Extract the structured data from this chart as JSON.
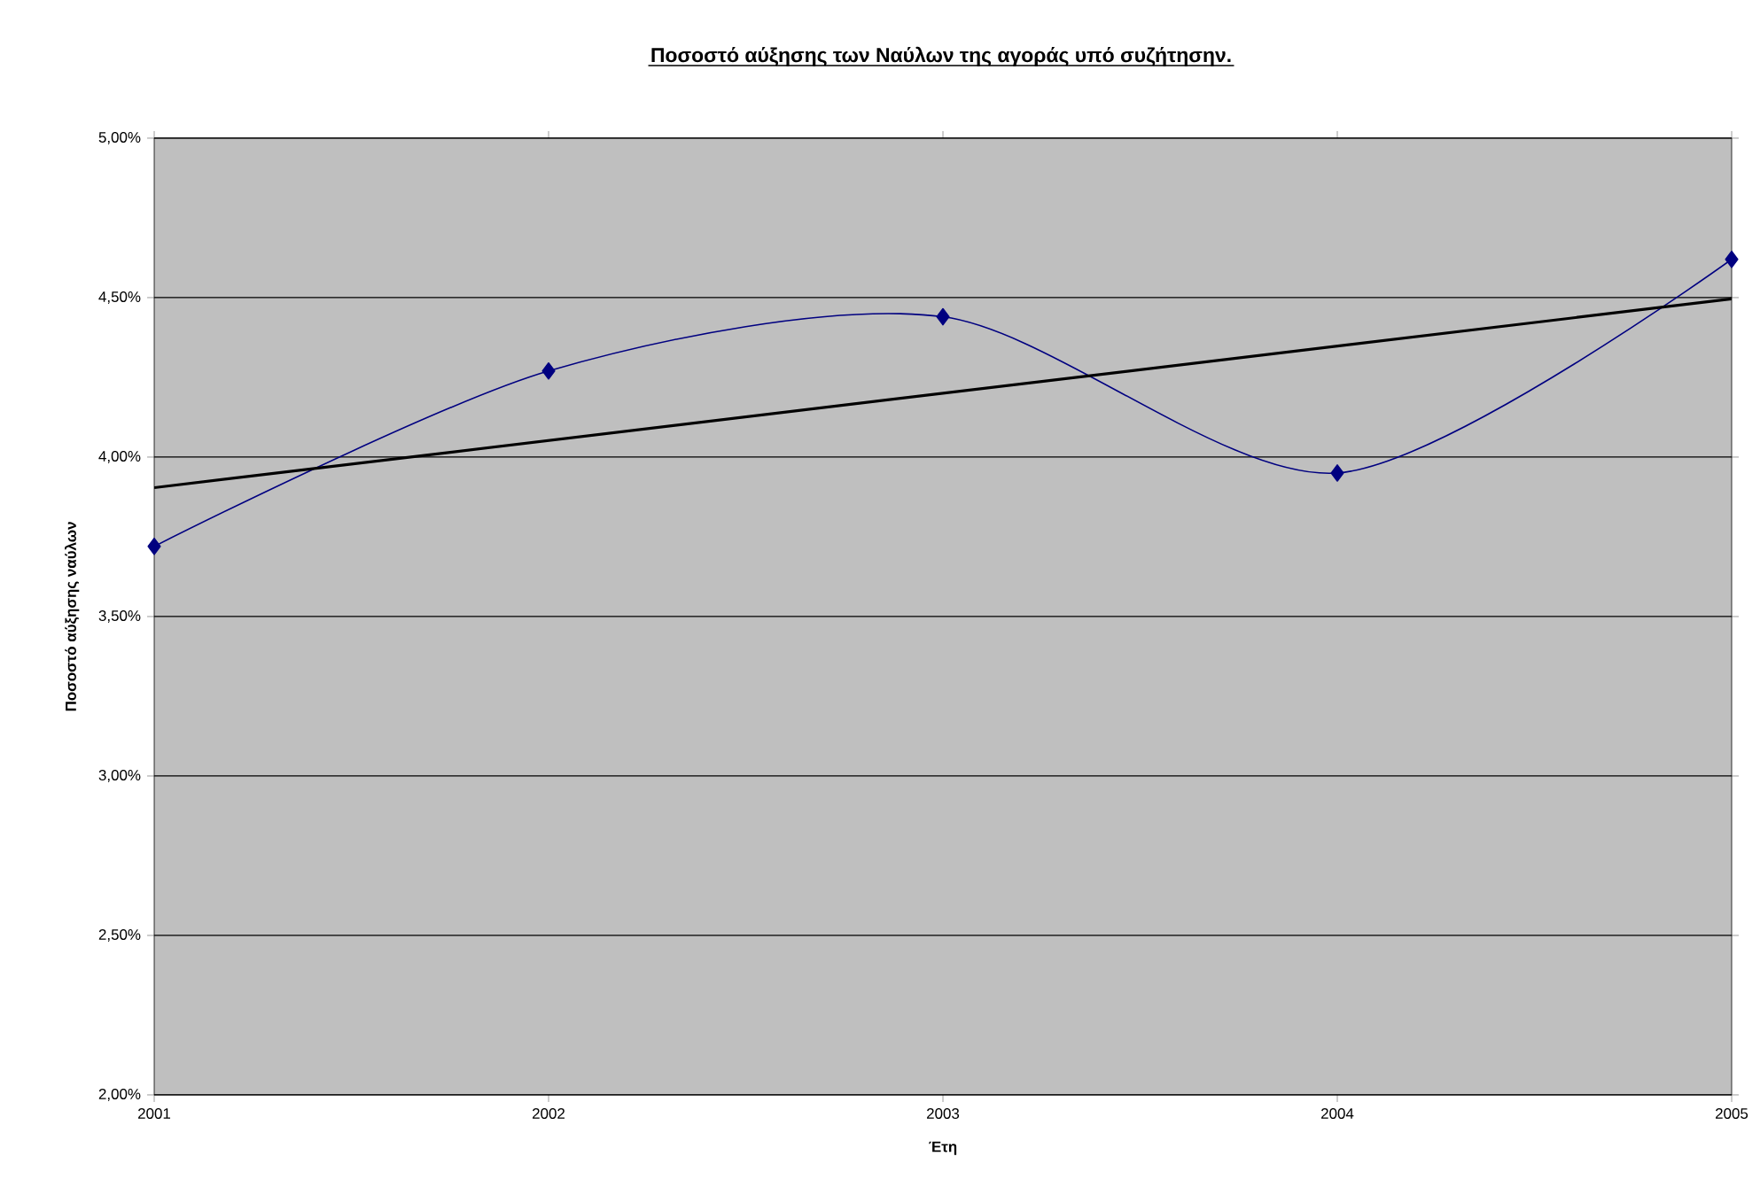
{
  "chart_data": {
    "type": "line",
    "title": "Ποσοστό αύξησης των Ναύλων της αγοράς υπό συζήτησην.",
    "xlabel": "Έτη",
    "ylabel": "Ποσοστό αύξησης ναύλων",
    "x": [
      2001,
      2002,
      2003,
      2004,
      2005
    ],
    "series": [
      {
        "color": "#000080",
        "values": [
          3.72,
          4.27,
          4.44,
          3.95,
          4.62
        ],
        "marker": "diamond"
      },
      {
        "type": "line",
        "color": "#000000",
        "x": [
          2001,
          2005
        ],
        "values": [
          3.904,
          4.496
        ],
        "marker": "none"
      }
    ],
    "xlim": [
      2001,
      2005
    ],
    "xticks": [
      2001,
      2002,
      2003,
      2004,
      2005
    ],
    "ylim": [
      2,
      5
    ],
    "yticks": [
      {
        "value": 2,
        "label": "2,00%"
      },
      {
        "value": 2.5,
        "label": "2,50%"
      },
      {
        "value": 3,
        "label": "3,00%"
      },
      {
        "value": 3.5,
        "label": "3,50%"
      },
      {
        "value": 4,
        "label": "4,00%"
      },
      {
        "value": 4.5,
        "label": "4,50%"
      },
      {
        "value": 5,
        "label": "5,00%"
      }
    ],
    "grid": "y"
  }
}
